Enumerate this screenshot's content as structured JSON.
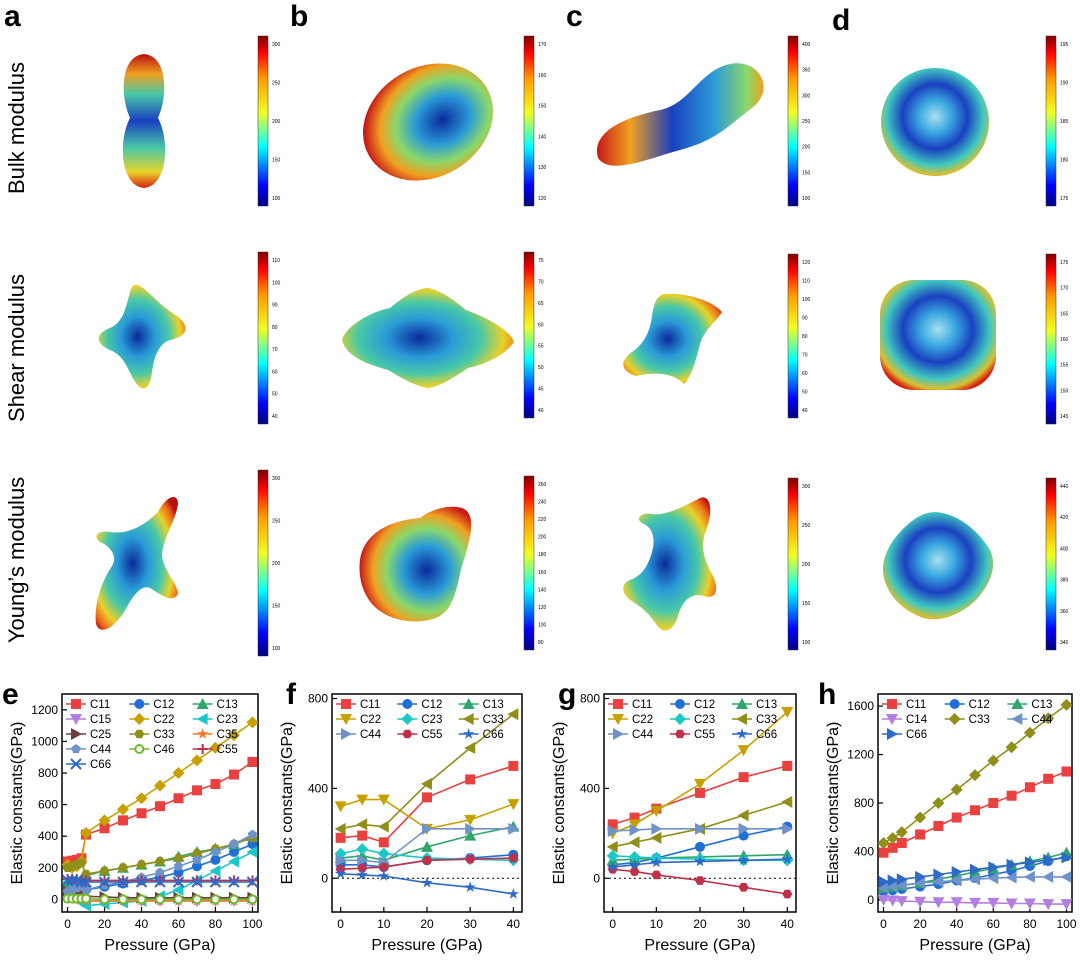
{
  "top": {
    "panel_letters": [
      "a",
      "b",
      "c",
      "d"
    ],
    "row_labels": [
      "Bulk modulus",
      "Shear modulus",
      "Young’s modulus"
    ],
    "colorbars": [
      [
        {
          "ticks": [
            "300",
            "250",
            "200",
            "150",
            "100"
          ]
        },
        {
          "ticks": [
            "110",
            "100",
            "90",
            "80",
            "70",
            "60",
            "50",
            "40"
          ]
        },
        {
          "ticks": [
            "300",
            "250",
            "200",
            "150",
            "100"
          ]
        }
      ],
      [
        {
          "ticks": [
            "170",
            "160",
            "150",
            "140",
            "130",
            "120"
          ]
        },
        {
          "ticks": [
            "75",
            "70",
            "65",
            "60",
            "55",
            "50",
            "45",
            "40"
          ]
        },
        {
          "ticks": [
            "260",
            "240",
            "220",
            "200",
            "180",
            "160",
            "140",
            "120",
            "100",
            "80"
          ]
        }
      ],
      [
        {
          "ticks": [
            "400",
            "350",
            "300",
            "250",
            "200",
            "150",
            "100"
          ]
        },
        {
          "ticks": [
            "120",
            "110",
            "100",
            "90",
            "80",
            "70",
            "60",
            "50",
            "40"
          ]
        },
        {
          "ticks": [
            "300",
            "250",
            "200",
            "150",
            "100"
          ]
        }
      ],
      [
        {
          "ticks": [
            "195",
            "190",
            "185",
            "180",
            "175"
          ]
        },
        {
          "ticks": [
            "175",
            "170",
            "165",
            "160",
            "155",
            "150",
            "145"
          ]
        },
        {
          "ticks": [
            "440",
            "420",
            "400",
            "380",
            "360",
            "340"
          ]
        }
      ]
    ]
  },
  "colors": {
    "C11": "#e8413f",
    "C12": "#1f6fd6",
    "C13": "#2fa66b",
    "C14": "#b27fe0",
    "C15": "#b27fe0",
    "C22": "#c7a000",
    "C23": "#1cc7c7",
    "C25": "#6a3e3a",
    "C33": "#8f8f1a",
    "C35": "#f07c2a",
    "C44": "#6f92c9",
    "C46": "#72b82c",
    "C55": "#c0304a",
    "C66": "#2d69c7"
  },
  "chart_data": [
    {
      "panel": "e",
      "type": "line",
      "xlabel": "Pressure (GPa)",
      "ylabel": "Elastic constants(GPa)",
      "xlim": [
        -3,
        103
      ],
      "ylim": [
        -80,
        1300
      ],
      "xticks": [
        0,
        20,
        40,
        60,
        80,
        100
      ],
      "yticks": [
        0,
        200,
        400,
        600,
        800,
        1000,
        1200
      ],
      "zero_line": false,
      "x": [
        0,
        2.5,
        5,
        7.5,
        10,
        20,
        30,
        40,
        50,
        60,
        70,
        80,
        90,
        100
      ],
      "series": [
        {
          "name": "C11",
          "marker": "square",
          "values": [
            240,
            245,
            250,
            260,
            410,
            450,
            500,
            545,
            590,
            640,
            690,
            730,
            790,
            870
          ]
        },
        {
          "name": "C12",
          "marker": "circle",
          "values": [
            70,
            75,
            80,
            60,
            60,
            80,
            100,
            120,
            140,
            170,
            210,
            250,
            300,
            350
          ]
        },
        {
          "name": "C13",
          "marker": "triangle-up",
          "values": [
            100,
            110,
            115,
            120,
            150,
            180,
            200,
            220,
            240,
            270,
            300,
            320,
            350,
            400
          ]
        },
        {
          "name": "C15",
          "marker": "triangle-down",
          "values": [
            20,
            15,
            5,
            0,
            -10,
            -10,
            -10,
            -10,
            -10,
            -10,
            -10,
            -10,
            -10,
            -10
          ]
        },
        {
          "name": "C22",
          "marker": "diamond",
          "values": [
            220,
            200,
            210,
            240,
            420,
            500,
            570,
            640,
            720,
            800,
            880,
            960,
            1040,
            1120
          ]
        },
        {
          "name": "C23",
          "marker": "triangle-left",
          "values": [
            110,
            100,
            90,
            -20,
            -40,
            -30,
            -20,
            -10,
            20,
            60,
            120,
            180,
            240,
            300
          ]
        },
        {
          "name": "C25",
          "marker": "triangle-right",
          "values": [
            50,
            45,
            40,
            30,
            20,
            15,
            10,
            10,
            10,
            10,
            10,
            10,
            10,
            10
          ]
        },
        {
          "name": "C33",
          "marker": "hexagon",
          "values": [
            200,
            210,
            220,
            230,
            160,
            180,
            200,
            220,
            240,
            260,
            290,
            320,
            350,
            390
          ]
        },
        {
          "name": "C35",
          "marker": "star",
          "values": [
            10,
            5,
            0,
            -5,
            -10,
            -10,
            -10,
            -10,
            -10,
            -10,
            -10,
            -10,
            -10,
            -10
          ]
        },
        {
          "name": "C44",
          "marker": "pentagon",
          "values": [
            50,
            60,
            70,
            80,
            60,
            90,
            110,
            140,
            170,
            210,
            250,
            300,
            350,
            410
          ]
        },
        {
          "name": "C46",
          "marker": "circle-open",
          "values": [
            5,
            5,
            5,
            5,
            5,
            0,
            0,
            0,
            0,
            0,
            0,
            0,
            0,
            0
          ]
        },
        {
          "name": "C55",
          "marker": "plus",
          "values": [
            130,
            130,
            130,
            120,
            120,
            120,
            120,
            120,
            120,
            120,
            120,
            120,
            120,
            120
          ]
        },
        {
          "name": "C66",
          "marker": "x",
          "values": [
            120,
            120,
            120,
            110,
            110,
            110,
            110,
            110,
            110,
            110,
            110,
            110,
            110,
            110
          ]
        }
      ],
      "legend_columns": 3
    },
    {
      "panel": "f",
      "type": "line",
      "xlabel": "Pressure (GPa)",
      "ylabel": "Elastic constants(GPa)",
      "xlim": [
        -2,
        42
      ],
      "ylim": [
        -150,
        820
      ],
      "xticks": [
        0,
        10,
        20,
        30,
        40
      ],
      "yticks": [
        0,
        400,
        800
      ],
      "zero_line": true,
      "x": [
        0,
        5,
        10,
        20,
        30,
        40
      ],
      "series": [
        {
          "name": "C11",
          "marker": "square",
          "values": [
            180,
            190,
            160,
            360,
            440,
            500
          ]
        },
        {
          "name": "C12",
          "marker": "circle",
          "values": [
            60,
            60,
            50,
            80,
            90,
            105
          ]
        },
        {
          "name": "C13",
          "marker": "triangle-up",
          "values": [
            90,
            100,
            80,
            140,
            190,
            230
          ]
        },
        {
          "name": "C22",
          "marker": "triangle-down",
          "values": [
            320,
            350,
            350,
            220,
            260,
            330
          ]
        },
        {
          "name": "C23",
          "marker": "diamond",
          "values": [
            110,
            130,
            110,
            90,
            85,
            80
          ]
        },
        {
          "name": "C33",
          "marker": "triangle-left",
          "values": [
            220,
            240,
            230,
            420,
            580,
            730
          ]
        },
        {
          "name": "C44",
          "marker": "triangle-right",
          "values": [
            80,
            80,
            70,
            220,
            220,
            220
          ]
        },
        {
          "name": "C55",
          "marker": "hexagon",
          "values": [
            40,
            45,
            50,
            80,
            85,
            90
          ]
        },
        {
          "name": "C66",
          "marker": "star",
          "values": [
            20,
            15,
            10,
            -20,
            -40,
            -70
          ]
        }
      ],
      "legend_columns": 3
    },
    {
      "panel": "g",
      "type": "line",
      "xlabel": "Pressure (GPa)",
      "ylabel": "Elastic constants(GPa)",
      "xlim": [
        -2,
        42
      ],
      "ylim": [
        -150,
        820
      ],
      "xticks": [
        0,
        10,
        20,
        30,
        40
      ],
      "yticks": [
        0,
        400,
        800
      ],
      "zero_line": true,
      "x": [
        0,
        5,
        10,
        20,
        30,
        40
      ],
      "series": [
        {
          "name": "C11",
          "marker": "square",
          "values": [
            240,
            270,
            310,
            380,
            450,
            500
          ]
        },
        {
          "name": "C12",
          "marker": "circle",
          "values": [
            60,
            70,
            90,
            140,
            190,
            230
          ]
        },
        {
          "name": "C13",
          "marker": "triangle-up",
          "values": [
            80,
            85,
            90,
            95,
            100,
            105
          ]
        },
        {
          "name": "C22",
          "marker": "triangle-down",
          "values": [
            200,
            240,
            300,
            420,
            570,
            740
          ]
        },
        {
          "name": "C23",
          "marker": "diamond",
          "values": [
            100,
            95,
            90,
            85,
            80,
            80
          ]
        },
        {
          "name": "C33",
          "marker": "triangle-left",
          "values": [
            140,
            160,
            180,
            220,
            280,
            340
          ]
        },
        {
          "name": "C44",
          "marker": "triangle-right",
          "values": [
            210,
            215,
            220,
            220,
            220,
            220
          ]
        },
        {
          "name": "C55",
          "marker": "hexagon",
          "values": [
            40,
            30,
            15,
            -10,
            -40,
            -70
          ]
        },
        {
          "name": "C66",
          "marker": "star",
          "values": [
            50,
            60,
            70,
            75,
            80,
            85
          ]
        }
      ],
      "legend_columns": 3
    },
    {
      "panel": "h",
      "type": "line",
      "xlabel": "Pressure (GPa)",
      "ylabel": "Elastic constants(GPa)",
      "xlim": [
        -3,
        103
      ],
      "ylim": [
        -100,
        1700
      ],
      "xticks": [
        0,
        20,
        40,
        60,
        80,
        100
      ],
      "yticks": [
        0,
        400,
        800,
        1200,
        1600
      ],
      "zero_line": false,
      "x": [
        0,
        5,
        10,
        20,
        30,
        40,
        50,
        60,
        70,
        80,
        90,
        100
      ],
      "series": [
        {
          "name": "C11",
          "marker": "square",
          "values": [
            390,
            430,
            470,
            540,
            610,
            680,
            740,
            800,
            860,
            930,
            1000,
            1060
          ]
        },
        {
          "name": "C12",
          "marker": "circle",
          "values": [
            70,
            80,
            90,
            110,
            130,
            160,
            180,
            210,
            240,
            280,
            320,
            360
          ]
        },
        {
          "name": "C13",
          "marker": "triangle-up",
          "values": [
            100,
            110,
            120,
            140,
            170,
            200,
            230,
            260,
            290,
            320,
            350,
            390
          ]
        },
        {
          "name": "C14",
          "marker": "triangle-down",
          "values": [
            0,
            -5,
            -10,
            -15,
            -20,
            -20,
            -25,
            -25,
            -30,
            -30,
            -35,
            -35
          ]
        },
        {
          "name": "C33",
          "marker": "diamond",
          "values": [
            470,
            510,
            560,
            680,
            800,
            910,
            1030,
            1150,
            1260,
            1380,
            1500,
            1610
          ]
        },
        {
          "name": "C44",
          "marker": "triangle-left",
          "values": [
            100,
            110,
            120,
            140,
            150,
            160,
            170,
            180,
            185,
            190,
            190,
            190
          ]
        },
        {
          "name": "C66",
          "marker": "triangle-right",
          "values": [
            150,
            160,
            170,
            190,
            210,
            230,
            250,
            270,
            290,
            310,
            330,
            350
          ]
        }
      ],
      "legend_columns": 3
    }
  ]
}
